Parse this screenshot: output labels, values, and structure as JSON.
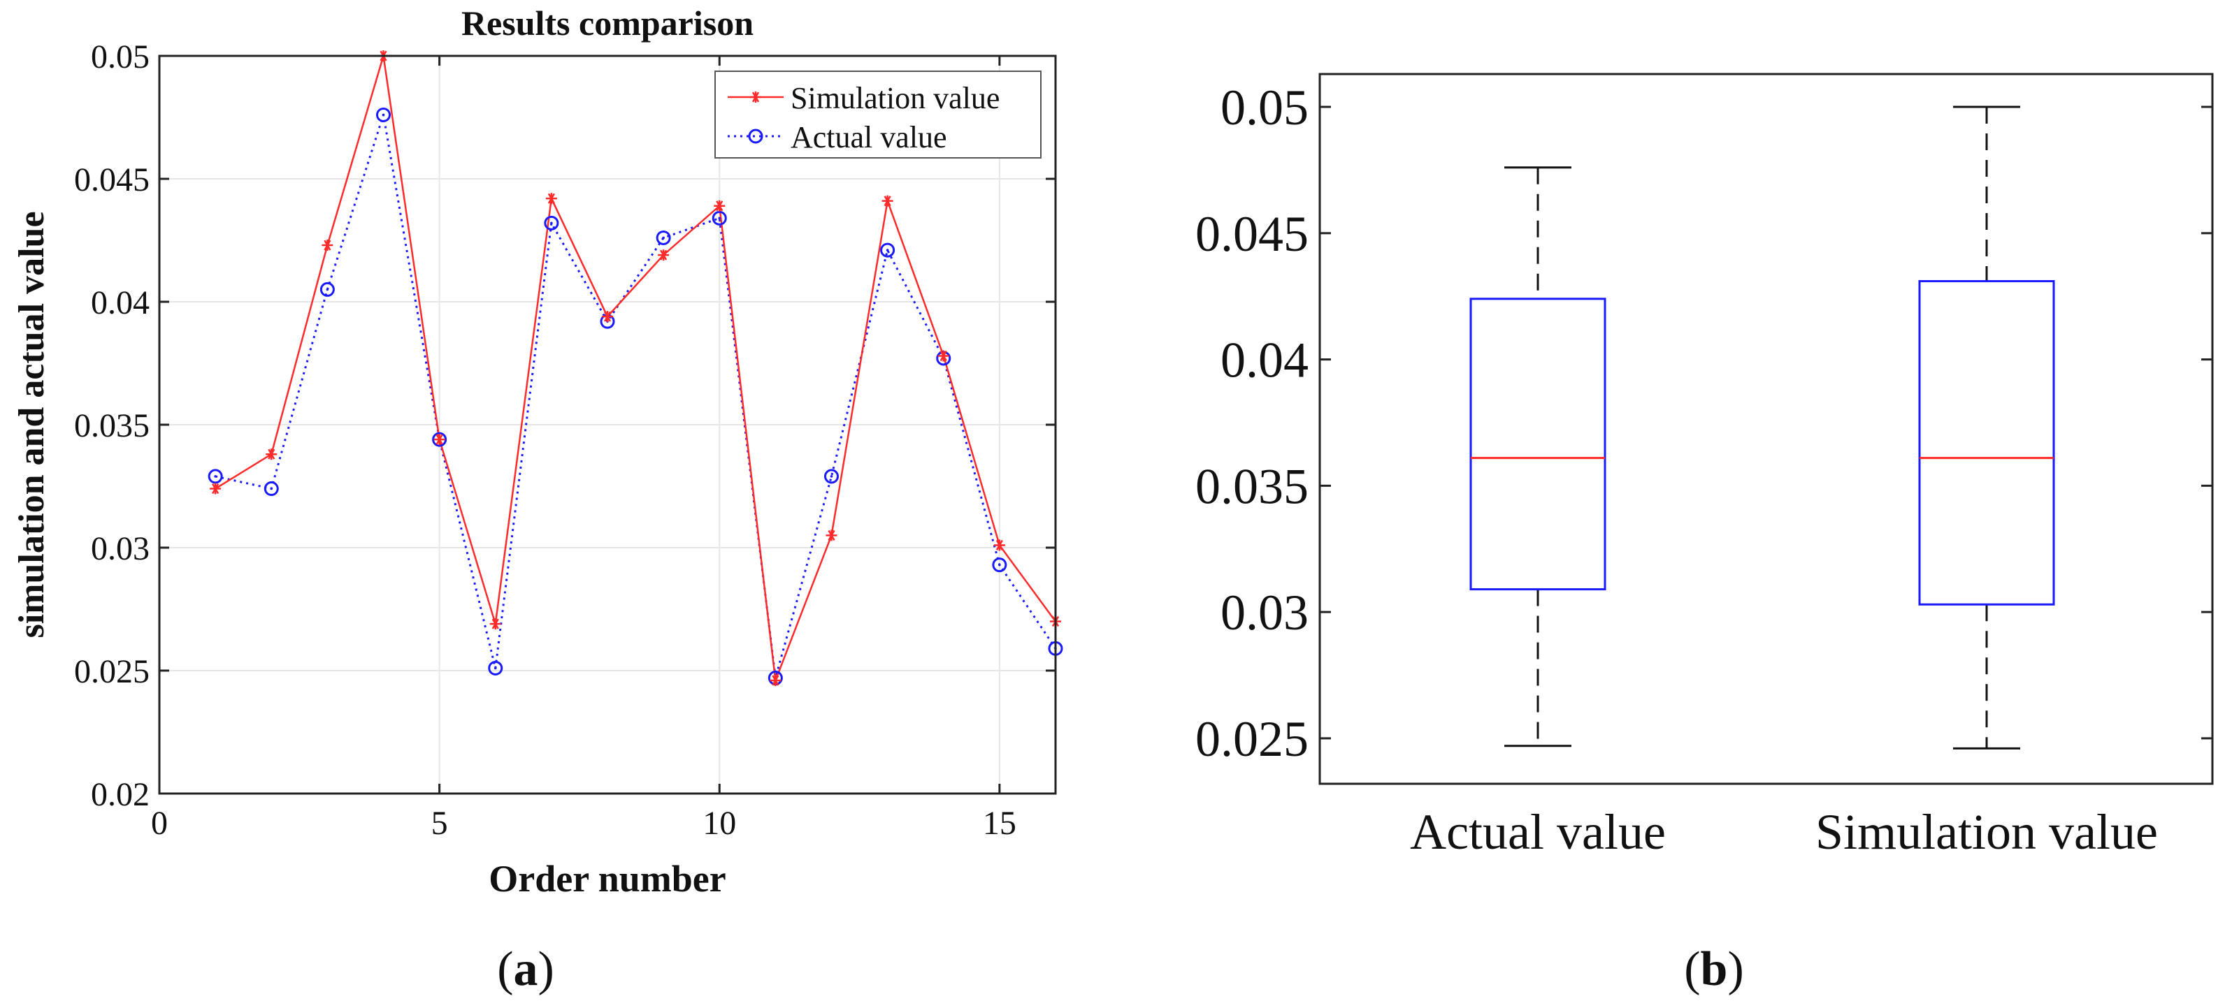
{
  "chart_data": [
    {
      "type": "line",
      "title": "Results comparison",
      "xlabel": "Order number",
      "ylabel": "simulation and actual value",
      "xlim": [
        0,
        16
      ],
      "ylim": [
        0.02,
        0.05
      ],
      "x_ticks": [
        0,
        5,
        10,
        15
      ],
      "x_tick_labels": [
        "0",
        "5",
        "10",
        "15"
      ],
      "y_ticks": [
        0.02,
        0.025,
        0.03,
        0.035,
        0.04,
        0.045,
        0.05
      ],
      "y_tick_labels": [
        "0.02",
        "0.025",
        "0.03",
        "0.035",
        "0.04",
        "0.045",
        "0.05"
      ],
      "grid": true,
      "legend_position": "top-right",
      "x": [
        1,
        2,
        3,
        4,
        5,
        6,
        7,
        8,
        9,
        10,
        11,
        12,
        13,
        14,
        15,
        16
      ],
      "series": [
        {
          "name": "Simulation value",
          "color": "#ff2a2a",
          "marker": "asterisk",
          "line_style": "solid",
          "values": [
            0.0324,
            0.0338,
            0.0423,
            0.05,
            0.0344,
            0.0269,
            0.0442,
            0.0394,
            0.0419,
            0.0439,
            0.0246,
            0.0305,
            0.0441,
            0.0378,
            0.0301,
            0.027
          ]
        },
        {
          "name": "Actual value",
          "color": "#1a1aff",
          "marker": "circle",
          "line_style": "dotted",
          "values": [
            0.0329,
            0.0324,
            0.0405,
            0.0476,
            0.0344,
            0.0251,
            0.0432,
            0.0392,
            0.0426,
            0.0434,
            0.0247,
            0.0329,
            0.0421,
            0.0377,
            0.0293,
            0.0259
          ]
        }
      ]
    },
    {
      "type": "box",
      "ylim": [
        0.0232,
        0.0513
      ],
      "y_ticks": [
        0.025,
        0.03,
        0.035,
        0.04,
        0.045,
        0.05
      ],
      "y_tick_labels": [
        "0.025",
        "0.03",
        "0.035",
        "0.04",
        "0.045",
        "0.05"
      ],
      "categories": [
        "Actual value",
        "Simulation value"
      ],
      "boxes": [
        {
          "name": "Actual value",
          "whisker_low": 0.0247,
          "q1": 0.0309,
          "median": 0.0361,
          "q3": 0.0424,
          "whisker_high": 0.0476
        },
        {
          "name": "Simulation value",
          "whisker_low": 0.0246,
          "q1": 0.0303,
          "median": 0.0361,
          "q3": 0.0431,
          "whisker_high": 0.05
        }
      ],
      "box_color": "#1a1aff",
      "median_color": "#ff2a2a"
    }
  ],
  "captions": {
    "a_open": "(",
    "a_letter": "a",
    "a_close": ")",
    "b_open": "(",
    "b_letter": "b",
    "b_close": ")"
  }
}
